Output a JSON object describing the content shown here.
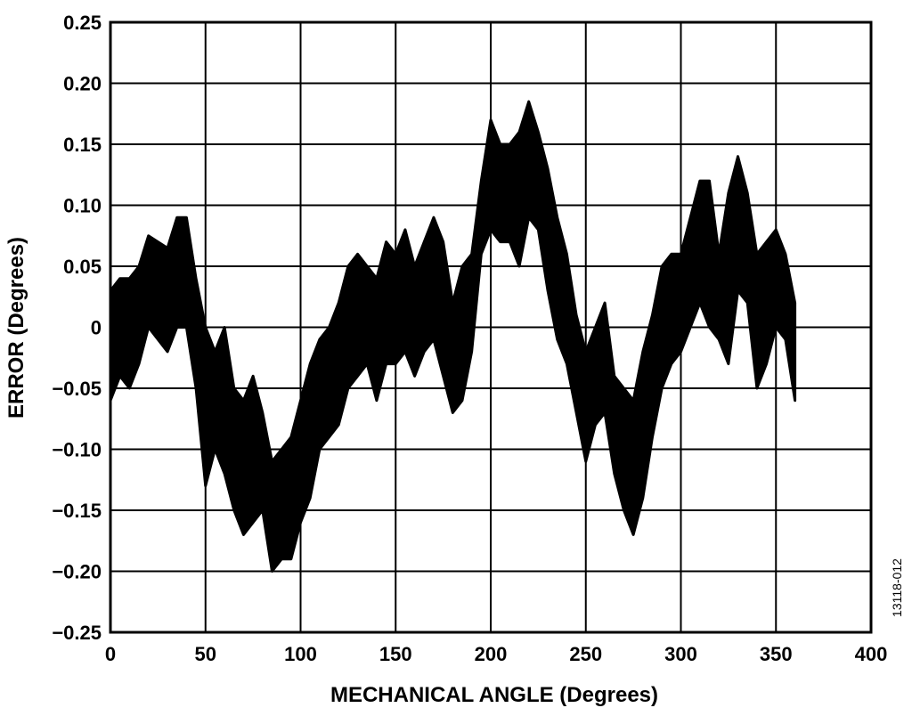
{
  "chart_data": {
    "type": "band",
    "x_label": "MECHANICAL ANGLE (Degrees)",
    "y_label": "ERROR (Degrees)",
    "figure_id": "13118-012",
    "color": "#000000",
    "grid": true,
    "xlim": [
      0,
      400
    ],
    "xticks": [
      0,
      50,
      100,
      150,
      200,
      250,
      300,
      350,
      400
    ],
    "ylim": [
      -0.25,
      0.25
    ],
    "yticks": [
      {
        "value": -0.25,
        "label": "−0.25"
      },
      {
        "value": -0.2,
        "label": "−0.20"
      },
      {
        "value": -0.15,
        "label": "−0.15"
      },
      {
        "value": -0.1,
        "label": "−0.10"
      },
      {
        "value": -0.05,
        "label": "−0.05"
      },
      0,
      0.05,
      {
        "value": 0.1,
        "label": "0.10"
      },
      0.15,
      {
        "value": 0.2,
        "label": "0.20"
      },
      0.25
    ],
    "x": [
      0,
      5,
      10,
      15,
      20,
      25,
      30,
      35,
      40,
      45,
      50,
      55,
      60,
      65,
      70,
      75,
      80,
      85,
      90,
      95,
      100,
      105,
      110,
      115,
      120,
      125,
      130,
      135,
      140,
      145,
      150,
      155,
      160,
      165,
      170,
      175,
      180,
      185,
      190,
      195,
      200,
      205,
      210,
      215,
      220,
      225,
      230,
      235,
      240,
      245,
      250,
      255,
      260,
      265,
      270,
      275,
      280,
      285,
      290,
      295,
      300,
      305,
      310,
      315,
      320,
      325,
      330,
      335,
      340,
      345,
      350,
      355,
      360
    ],
    "high": [
      0.03,
      0.04,
      0.04,
      0.05,
      0.075,
      0.07,
      0.065,
      0.09,
      0.09,
      0.04,
      0.0,
      -0.02,
      0.0,
      -0.05,
      -0.06,
      -0.04,
      -0.07,
      -0.11,
      -0.1,
      -0.09,
      -0.06,
      -0.03,
      -0.01,
      0.0,
      0.02,
      0.05,
      0.06,
      0.05,
      0.04,
      0.07,
      0.06,
      0.08,
      0.05,
      0.07,
      0.09,
      0.07,
      0.02,
      0.05,
      0.06,
      0.12,
      0.17,
      0.15,
      0.15,
      0.16,
      0.185,
      0.16,
      0.13,
      0.09,
      0.06,
      0.01,
      -0.02,
      0.0,
      0.02,
      -0.04,
      -0.05,
      -0.06,
      -0.02,
      0.01,
      0.05,
      0.06,
      0.06,
      0.09,
      0.12,
      0.12,
      0.06,
      0.11,
      0.14,
      0.11,
      0.06,
      0.07,
      0.08,
      0.06,
      0.02
    ],
    "low": [
      -0.06,
      -0.04,
      -0.05,
      -0.03,
      0.0,
      -0.01,
      -0.02,
      0.0,
      0.0,
      -0.05,
      -0.13,
      -0.1,
      -0.12,
      -0.15,
      -0.17,
      -0.16,
      -0.15,
      -0.2,
      -0.19,
      -0.19,
      -0.16,
      -0.14,
      -0.1,
      -0.09,
      -0.08,
      -0.05,
      -0.04,
      -0.03,
      -0.06,
      -0.03,
      -0.03,
      -0.02,
      -0.04,
      -0.02,
      -0.01,
      -0.04,
      -0.07,
      -0.06,
      -0.02,
      0.06,
      0.08,
      0.07,
      0.07,
      0.05,
      0.09,
      0.08,
      0.03,
      -0.01,
      -0.03,
      -0.07,
      -0.11,
      -0.08,
      -0.07,
      -0.12,
      -0.15,
      -0.17,
      -0.14,
      -0.09,
      -0.05,
      -0.03,
      -0.02,
      0.0,
      0.02,
      0.0,
      -0.01,
      -0.03,
      0.03,
      0.02,
      -0.05,
      -0.03,
      0.0,
      -0.01,
      -0.06
    ]
  }
}
